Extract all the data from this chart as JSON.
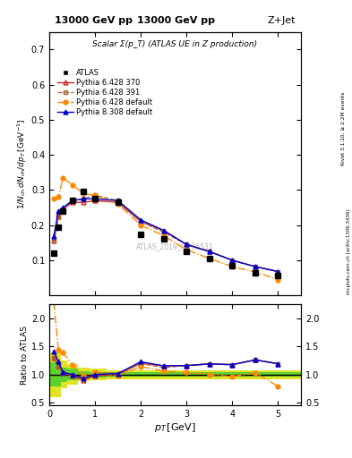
{
  "title_top": "13000 GeV pp",
  "title_right": "Z+Jet",
  "plot_title": "Scalar Σ(p_T) (ATLAS UE in Z production)",
  "ylabel_main": "1/N_{ch} dN_{ch}/dp_T [GeV⁻¹]",
  "ylabel_ratio": "Ratio to ATLAS",
  "xlabel": "p_T [GeV]",
  "watermark": "ATLAS_2019_I1736531",
  "right_label": "Rivet 3.1.10, ≥ 2.2M events",
  "right_label2": "mcplots.cern.ch [arXiv:1306.3436]",
  "atlas_x": [
    0.1,
    0.2,
    0.3,
    0.5,
    0.75,
    1.0,
    1.5,
    2.0,
    2.5,
    3.0,
    3.5,
    4.0,
    4.5,
    5.0
  ],
  "atlas_y": [
    0.12,
    0.195,
    0.24,
    0.27,
    0.295,
    0.275,
    0.265,
    0.175,
    0.16,
    0.125,
    0.105,
    0.085,
    0.065,
    0.057
  ],
  "py6_370_x": [
    0.1,
    0.2,
    0.3,
    0.5,
    0.75,
    1.0,
    1.5,
    2.0,
    2.5,
    3.0,
    3.5,
    4.0,
    4.5,
    5.0
  ],
  "py6_370_y": [
    0.155,
    0.225,
    0.245,
    0.265,
    0.265,
    0.27,
    0.265,
    0.21,
    0.185,
    0.145,
    0.125,
    0.1,
    0.082,
    0.068
  ],
  "py6_391_x": [
    0.1,
    0.2,
    0.3,
    0.5,
    0.75,
    1.0,
    1.5,
    2.0,
    2.5,
    3.0,
    3.5,
    4.0,
    4.5,
    5.0
  ],
  "py6_391_y": [
    0.155,
    0.225,
    0.245,
    0.27,
    0.275,
    0.285,
    0.27,
    0.21,
    0.18,
    0.145,
    0.125,
    0.1,
    0.082,
    0.068
  ],
  "py6_def_x": [
    0.1,
    0.2,
    0.3,
    0.5,
    0.75,
    1.0,
    1.5,
    2.0,
    2.5,
    3.0,
    3.5,
    4.0,
    4.5,
    5.0
  ],
  "py6_def_y": [
    0.275,
    0.28,
    0.335,
    0.315,
    0.29,
    0.285,
    0.26,
    0.2,
    0.17,
    0.13,
    0.105,
    0.082,
    0.067,
    0.045
  ],
  "py8_def_x": [
    0.1,
    0.2,
    0.3,
    0.5,
    0.75,
    1.0,
    1.5,
    2.0,
    2.5,
    3.0,
    3.5,
    4.0,
    4.5,
    5.0
  ],
  "py8_def_y": [
    0.17,
    0.24,
    0.25,
    0.27,
    0.275,
    0.275,
    0.27,
    0.215,
    0.185,
    0.145,
    0.125,
    0.1,
    0.082,
    0.068
  ],
  "xlim": [
    0.0,
    5.5
  ],
  "ylim_main": [
    0.0,
    0.75
  ],
  "ylim_ratio": [
    0.45,
    2.25
  ],
  "color_atlas": "#000000",
  "color_py6_370": "#cc2222",
  "color_py6_391": "#aa6633",
  "color_py6_def": "#ff8800",
  "color_py8_def": "#0000cc",
  "green_band": "#33cc33",
  "yellow_band": "#dddd00",
  "yticks_main": [
    0.1,
    0.2,
    0.3,
    0.4,
    0.5,
    0.6,
    0.7
  ],
  "yticks_ratio": [
    0.5,
    1.0,
    1.5,
    2.0
  ],
  "band_x_edges": [
    0.0,
    0.15,
    0.25,
    0.4,
    0.625,
    0.875,
    1.25,
    1.75,
    2.25,
    2.75,
    3.25,
    3.75,
    4.25,
    4.75,
    5.5
  ],
  "band_ylo": [
    0.6,
    0.6,
    0.75,
    0.82,
    0.88,
    0.9,
    0.92,
    0.92,
    0.92,
    0.92,
    0.92,
    0.92,
    0.92,
    0.92
  ],
  "band_yhi": [
    1.4,
    1.4,
    1.25,
    1.18,
    1.12,
    1.1,
    1.08,
    1.08,
    1.08,
    1.08,
    1.08,
    1.08,
    1.08,
    1.08
  ],
  "band2_ylo": [
    0.78,
    0.78,
    0.87,
    0.9,
    0.94,
    0.95,
    0.96,
    0.96,
    0.96,
    0.96,
    0.96,
    0.96,
    0.96,
    0.96
  ],
  "band2_yhi": [
    1.22,
    1.22,
    1.13,
    1.1,
    1.06,
    1.05,
    1.04,
    1.04,
    1.04,
    1.04,
    1.04,
    1.04,
    1.04,
    1.04
  ]
}
